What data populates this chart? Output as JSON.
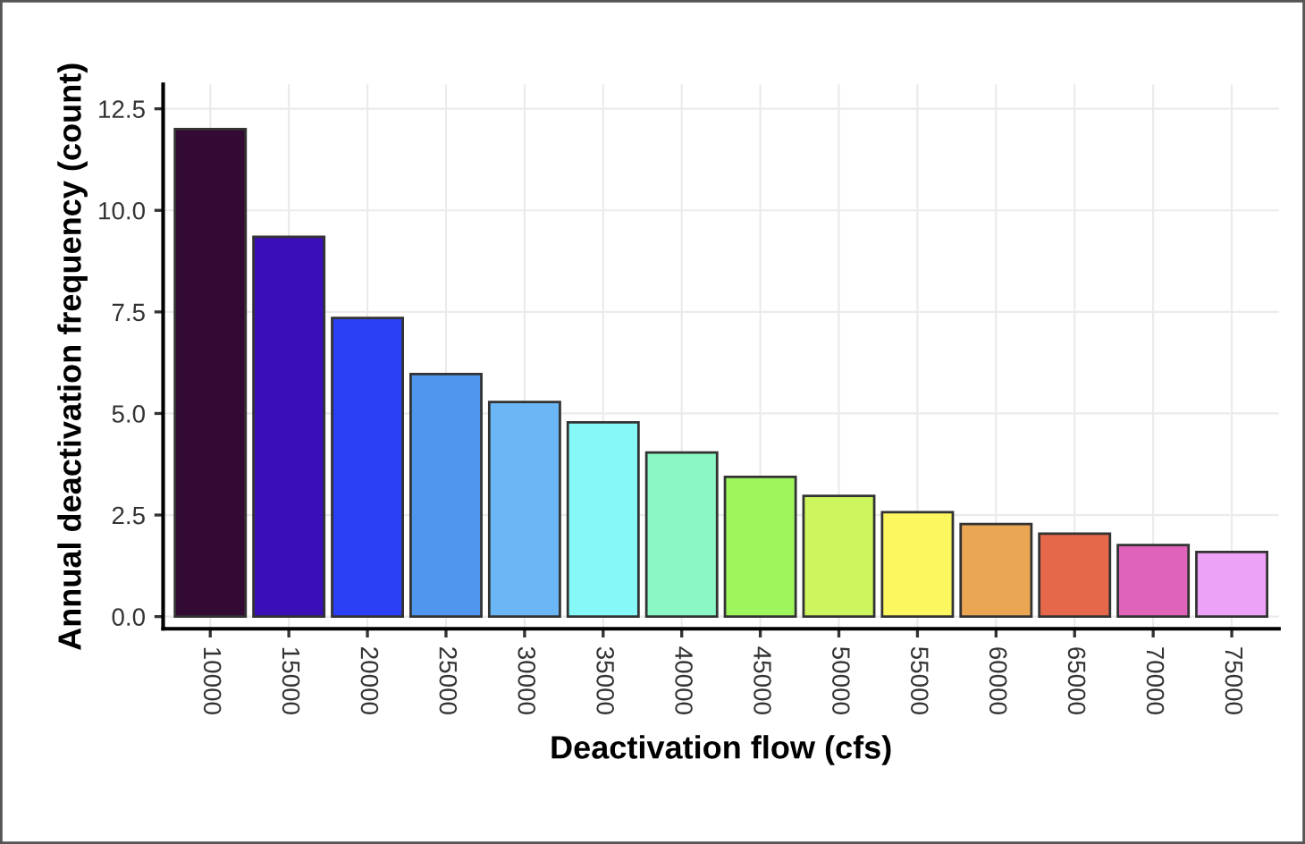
{
  "chart_data": {
    "type": "bar",
    "xlabel": "Deactivation flow (cfs)",
    "ylabel": "Annual deactivation frequency (count)",
    "categories": [
      "10000",
      "15000",
      "20000",
      "25000",
      "30000",
      "35000",
      "40000",
      "45000",
      "50000",
      "55000",
      "60000",
      "65000",
      "70000",
      "75000"
    ],
    "values": [
      12.0,
      9.35,
      7.35,
      5.97,
      5.28,
      4.78,
      4.04,
      3.44,
      2.97,
      2.57,
      2.28,
      2.04,
      1.76,
      1.59
    ],
    "colors": [
      "#330a33",
      "#3a0fb8",
      "#2b3ff5",
      "#4f97ee",
      "#6bb7f5",
      "#86f8f8",
      "#8af7c4",
      "#9ef55c",
      "#cdf55e",
      "#fcf75e",
      "#eba654",
      "#e5684a",
      "#df63b8",
      "#eca2f6"
    ],
    "ylim": [
      -0.3,
      13.1
    ],
    "yticks": [
      {
        "value": 0,
        "label": "0.0"
      },
      {
        "value": 2.5,
        "label": "2.5"
      },
      {
        "value": 5,
        "label": "5.0"
      },
      {
        "value": 7.5,
        "label": "7.5"
      },
      {
        "value": 10,
        "label": "10.0"
      },
      {
        "value": 12.5,
        "label": "12.5"
      }
    ],
    "grid": true
  }
}
